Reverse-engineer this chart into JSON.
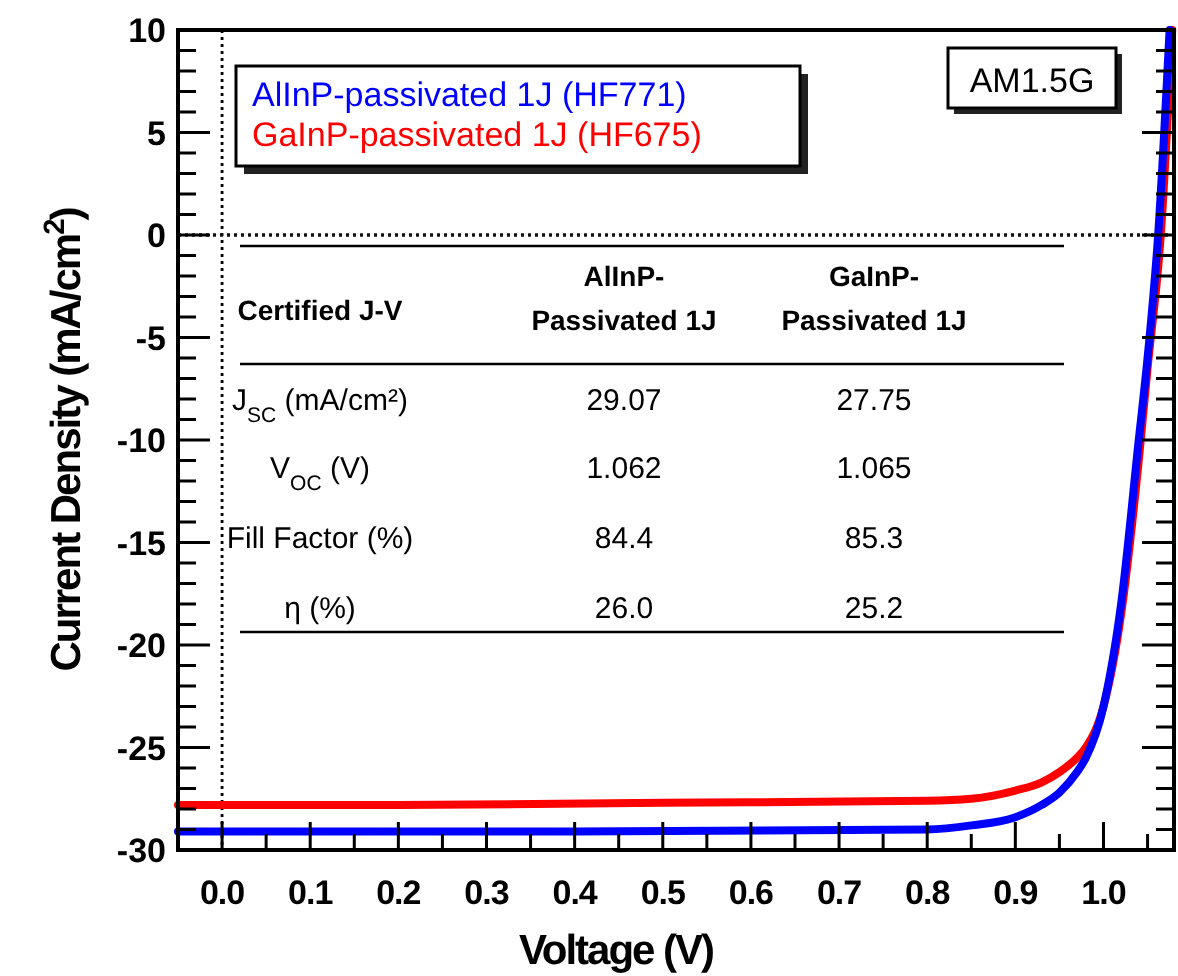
{
  "chart_data": {
    "type": "line",
    "xlabel": "Voltage (V)",
    "ylabel": "Current Density (mA/cm$^{2}$)",
    "xlim": [
      -0.05,
      1.08
    ],
    "ylim": [
      -30,
      10
    ],
    "xticks": [
      {
        "value": 0,
        "label": "0.0"
      },
      {
        "value": 0.05,
        "label": null
      },
      0.1,
      {
        "value": 0.15,
        "label": null
      },
      0.2,
      {
        "value": 0.25,
        "label": null
      },
      0.3,
      {
        "value": 0.35,
        "label": null
      },
      0.4,
      {
        "value": 0.45,
        "label": null
      },
      0.5,
      {
        "value": 0.55,
        "label": null
      },
      0.6,
      {
        "value": 0.65,
        "label": null
      },
      0.7,
      {
        "value": 0.75,
        "label": null
      },
      0.8,
      {
        "value": 0.85,
        "label": null
      },
      0.9,
      {
        "value": 0.95,
        "label": null
      },
      {
        "value": 1,
        "label": "1.0"
      },
      {
        "value": 1.05,
        "label": null
      }
    ],
    "yticks": [
      -30,
      {
        "value": -29,
        "label": null
      },
      {
        "value": -28,
        "label": null
      },
      {
        "value": -27,
        "label": null
      },
      {
        "value": -26,
        "label": null
      },
      -25,
      {
        "value": -24,
        "label": null
      },
      {
        "value": -23,
        "label": null
      },
      {
        "value": -22,
        "label": null
      },
      {
        "value": -21,
        "label": null
      },
      -20,
      {
        "value": -19,
        "label": null
      },
      {
        "value": -18,
        "label": null
      },
      {
        "value": -17,
        "label": null
      },
      {
        "value": -16,
        "label": null
      },
      -15,
      {
        "value": -14,
        "label": null
      },
      {
        "value": -13,
        "label": null
      },
      {
        "value": -12,
        "label": null
      },
      {
        "value": -11,
        "label": null
      },
      -10,
      {
        "value": -9,
        "label": null
      },
      {
        "value": -8,
        "label": null
      },
      {
        "value": -7,
        "label": null
      },
      {
        "value": -6,
        "label": null
      },
      -5,
      {
        "value": -4,
        "label": null
      },
      {
        "value": -3,
        "label": null
      },
      {
        "value": -2,
        "label": null
      },
      {
        "value": -1,
        "label": null
      },
      0,
      {
        "value": 1,
        "label": null
      },
      {
        "value": 2,
        "label": null
      },
      {
        "value": 3,
        "label": null
      },
      {
        "value": 4,
        "label": null
      },
      5,
      {
        "value": 6,
        "label": null
      },
      {
        "value": 7,
        "label": null
      },
      {
        "value": 8,
        "label": null
      },
      {
        "value": 9,
        "label": null
      },
      10
    ],
    "grid": false,
    "legend": "top left",
    "marker": "none",
    "line_style": "solid",
    "series": [
      {
        "name": "GaInP-passivated 1J (HF675)",
        "color": "#ff0000",
        "x": [
          -0.05,
          0,
          0.2,
          0.5,
          0.8,
          0.85,
          0.9,
          0.93,
          0.95,
          0.97,
          0.98,
          1.0,
          1.02,
          1.04,
          1.05,
          1.065,
          1.078
        ],
        "values": [
          -27.8,
          -27.8,
          -27.8,
          -27.7,
          -27.6,
          -27.5,
          -27.1,
          -26.7,
          -26.2,
          -25.5,
          -25,
          -23,
          -18.5,
          -11,
          -6.5,
          0,
          10
        ]
      },
      {
        "name": "AlInP-passivated 1J (HF771)",
        "color": "#0000ff",
        "x": [
          -0.05,
          0,
          0.2,
          0.4,
          0.8,
          0.85,
          0.9,
          0.93,
          0.95,
          0.97,
          0.98,
          1.0,
          1.02,
          1.04,
          1.05,
          1.062,
          1.075
        ],
        "values": [
          -29.1,
          -29.1,
          -29.1,
          -29.1,
          -29,
          -28.8,
          -28.4,
          -27.8,
          -27.2,
          -26.2,
          -25.5,
          -23,
          -18,
          -10,
          -6,
          0,
          10
        ]
      }
    ],
    "ref_lines": [
      {
        "axis": "x",
        "value": 0,
        "line_style": "dotted"
      },
      {
        "axis": "y",
        "value": 0,
        "line_style": "dotted"
      }
    ],
    "annotations": [
      "AM1.5G",
      "Certified J-V",
      "AlInP-\nPassivated 1J",
      "GaInP-\nPassivated 1J",
      "J$_{SC}$ (mA/cm²)",
      "29.07",
      "27.75",
      "V$_{OC}$ (V)",
      "1.062",
      "1.065",
      "Fill Factor (%)",
      "84.4",
      "85.3",
      "η (%)",
      "26.0",
      "25.2"
    ]
  }
}
